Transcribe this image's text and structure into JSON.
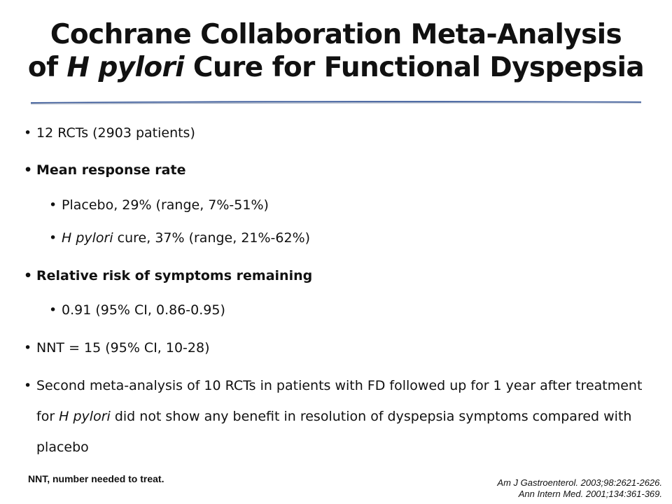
{
  "title": {
    "line1": "Cochrane Collaboration Meta-Analysis",
    "line2_pre": "of ",
    "line2_italic": "H pylori",
    "line2_post": " Cure for Functional Dyspepsia"
  },
  "bullets": {
    "b1": "12 RCTs (2903 patients)",
    "b2": "Mean response rate",
    "b2a": "Placebo, 29% (range, 7%-51%)",
    "b2b_italic": "H pylori",
    "b2b_rest": " cure, 37% (range, 21%-62%)",
    "b3": "Relative risk of symptoms remaining",
    "b3a": "0.91 (95% CI, 0.86-0.95)",
    "b4": "NNT = 15 (95% CI, 10-28)",
    "b5_line1": "Second meta-analysis of 10 RCTs in patients with FD followed up for 1 year after treatment",
    "b5_line2_pre": "for ",
    "b5_line2_italic": "H pylori",
    "b5_line2_post": " did not show any benefit in resolution of dyspepsia symptoms compared with",
    "b5_line3": "placebo"
  },
  "footnote": "NNT, number needed to treat.",
  "references": [
    "Am J Gastroenterol. 2003;98:2621-2626.",
    "Ann Intern Med. 2001;134:361-369."
  ],
  "colors": {
    "rule_blue": "#3a5a9a",
    "rule_gray": "#9aa6bc"
  }
}
